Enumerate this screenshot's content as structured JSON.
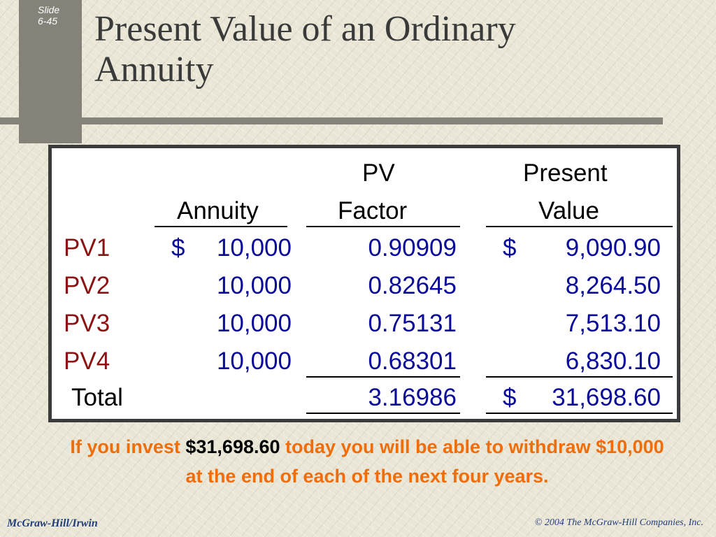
{
  "slide_label": {
    "line1": "Slide",
    "line2": "6-45"
  },
  "title": {
    "line1": "Present Value of an Ordinary",
    "line2": "Annuity"
  },
  "table": {
    "headers": {
      "annuity": "Annuity",
      "pv_factor_line1": "PV",
      "pv_factor_line2": "Factor",
      "present_value_line1": "Present",
      "present_value_line2": "Value"
    },
    "rows": [
      {
        "label": "PV1",
        "currency1": "$",
        "annuity": "10,000",
        "factor": "0.90909",
        "currency2": "$",
        "value": "9,090.90"
      },
      {
        "label": "PV2",
        "currency1": "",
        "annuity": "10,000",
        "factor": "0.82645",
        "currency2": "",
        "value": "8,264.50"
      },
      {
        "label": "PV3",
        "currency1": "",
        "annuity": "10,000",
        "factor": "0.75131",
        "currency2": "",
        "value": "7,513.10"
      },
      {
        "label": "PV4",
        "currency1": "",
        "annuity": "10,000",
        "factor": "0.68301",
        "currency2": "",
        "value": "6,830.10"
      }
    ],
    "total": {
      "label": "Total",
      "factor": "3.16986",
      "currency": "$",
      "value": "31,698.60"
    }
  },
  "caption": {
    "part1": "If you invest ",
    "amount": "$31,698.60",
    "part2": " today you will be able to withdraw $10,000 at the end of each of the next four years."
  },
  "footer": {
    "left": "McGraw-Hill/Irwin",
    "right": "© 2004 The McGraw-Hill Companies, Inc."
  },
  "colors": {
    "row_label": "#8b1313",
    "values": "#0a0a9a",
    "caption": "#ef6d0a",
    "footer": "#233f7b"
  }
}
